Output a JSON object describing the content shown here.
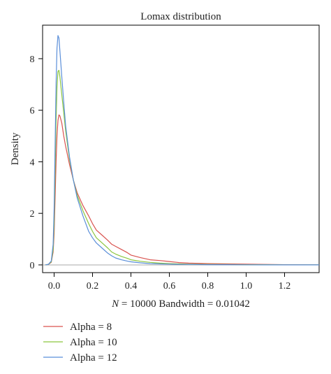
{
  "chart_data": {
    "type": "line",
    "title": "Lomax distribution",
    "xlabel_n": "N",
    "xlabel_rest": " = 10000 Bandwidth = 0.01042",
    "ylabel": "Density",
    "xlim": [
      -0.06,
      1.38
    ],
    "ylim": [
      -0.3,
      9.3
    ],
    "xticks": [
      0.0,
      0.2,
      0.4,
      0.6,
      0.8,
      1.0,
      1.2
    ],
    "xtick_labels": [
      "0.0",
      "0.2",
      "0.4",
      "0.6",
      "0.8",
      "1.0",
      "1.2"
    ],
    "yticks": [
      0,
      2,
      4,
      6,
      8
    ],
    "ytick_labels": [
      "0",
      "2",
      "4",
      "6",
      "8"
    ],
    "grid": false,
    "legend_position": "bottom-left",
    "series": [
      {
        "name": "Alpha = 8",
        "color": "#d9534f",
        "x": [
          -0.045,
          -0.03,
          -0.015,
          -0.005,
          0.0,
          0.005,
          0.01,
          0.015,
          0.02,
          0.025,
          0.03,
          0.04,
          0.05,
          0.06,
          0.08,
          0.1,
          0.12,
          0.15,
          0.18,
          0.2,
          0.22,
          0.25,
          0.28,
          0.3,
          0.32,
          0.35,
          0.38,
          0.4,
          0.45,
          0.5,
          0.55,
          0.6,
          0.65,
          0.7,
          0.8,
          0.9,
          1.0,
          1.1,
          1.2,
          1.38
        ],
        "y": [
          0.0,
          0.02,
          0.1,
          0.5,
          1.2,
          2.6,
          4.0,
          5.0,
          5.6,
          5.82,
          5.78,
          5.5,
          5.0,
          4.6,
          3.9,
          3.3,
          2.8,
          2.3,
          1.9,
          1.6,
          1.35,
          1.15,
          0.95,
          0.8,
          0.72,
          0.6,
          0.48,
          0.38,
          0.28,
          0.2,
          0.17,
          0.13,
          0.09,
          0.07,
          0.05,
          0.04,
          0.03,
          0.02,
          0.01,
          0.0
        ]
      },
      {
        "name": "Alpha = 10",
        "color": "#8cc63f",
        "x": [
          -0.045,
          -0.03,
          -0.015,
          -0.005,
          0.0,
          0.005,
          0.01,
          0.015,
          0.02,
          0.025,
          0.03,
          0.04,
          0.05,
          0.06,
          0.08,
          0.1,
          0.12,
          0.15,
          0.18,
          0.2,
          0.22,
          0.25,
          0.28,
          0.3,
          0.32,
          0.35,
          0.38,
          0.4,
          0.45,
          0.5,
          0.55,
          0.6,
          0.65,
          0.7,
          0.8,
          0.9,
          1.0,
          1.1,
          1.2,
          1.38
        ],
        "y": [
          0.0,
          0.02,
          0.12,
          0.6,
          1.6,
          3.6,
          5.6,
          6.9,
          7.5,
          7.55,
          7.3,
          6.6,
          5.9,
          5.2,
          4.1,
          3.3,
          2.7,
          2.1,
          1.6,
          1.3,
          1.05,
          0.85,
          0.65,
          0.5,
          0.42,
          0.33,
          0.26,
          0.2,
          0.14,
          0.1,
          0.07,
          0.05,
          0.04,
          0.03,
          0.02,
          0.015,
          0.01,
          0.01,
          0.005,
          0.0
        ]
      },
      {
        "name": "Alpha = 12",
        "color": "#5b8fd9",
        "x": [
          -0.045,
          -0.03,
          -0.015,
          -0.005,
          0.0,
          0.005,
          0.01,
          0.015,
          0.02,
          0.025,
          0.03,
          0.04,
          0.05,
          0.06,
          0.08,
          0.1,
          0.12,
          0.15,
          0.18,
          0.2,
          0.22,
          0.25,
          0.28,
          0.3,
          0.32,
          0.35,
          0.38,
          0.4,
          0.45,
          0.5,
          0.55,
          0.6,
          0.65,
          0.7,
          0.8,
          0.9,
          1.0,
          1.1,
          1.2,
          1.38
        ],
        "y": [
          0.0,
          0.02,
          0.15,
          0.8,
          2.2,
          4.6,
          7.0,
          8.4,
          8.9,
          8.8,
          8.3,
          7.3,
          6.3,
          5.4,
          4.2,
          3.3,
          2.6,
          1.9,
          1.3,
          1.05,
          0.85,
          0.65,
          0.45,
          0.35,
          0.27,
          0.2,
          0.15,
          0.12,
          0.08,
          0.05,
          0.04,
          0.03,
          0.02,
          0.02,
          0.01,
          0.01,
          0.005,
          0.0,
          0.0,
          0.0
        ]
      }
    ]
  }
}
